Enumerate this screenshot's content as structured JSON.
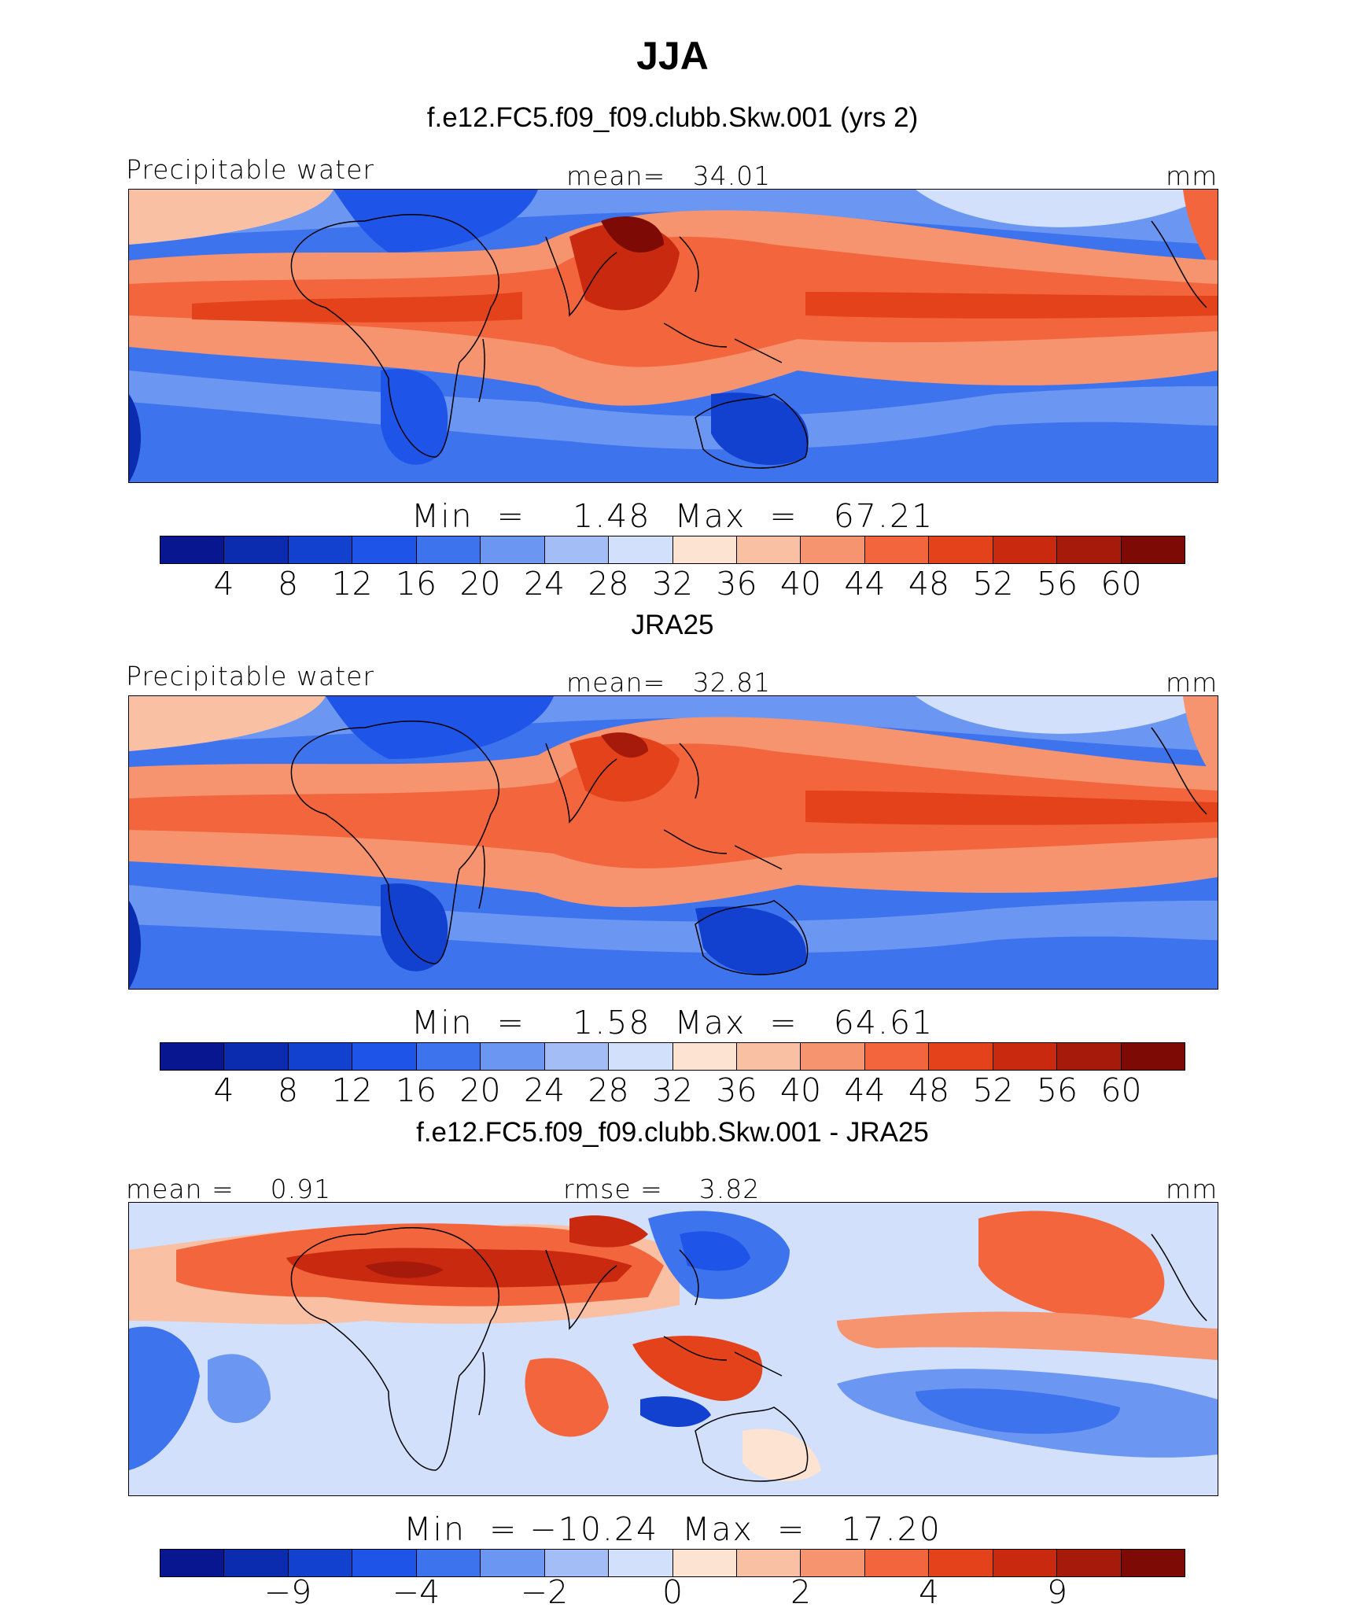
{
  "page": {
    "title": "JJA"
  },
  "panels": [
    {
      "header": "f.e12.FC5.f09_f09.clubb.Skw.001 (yrs 2)",
      "left_label": "Precipitable water",
      "center_label": "mean=   34.01",
      "right_label": "mm",
      "stats": "Min  =    1.48  Max  =   67.21",
      "colorbar_ticks": [
        "4",
        "8",
        "12",
        "16",
        "20",
        "24",
        "28",
        "32",
        "36",
        "40",
        "44",
        "48",
        "52",
        "56",
        "60"
      ]
    },
    {
      "header": "JRA25",
      "left_label": "Precipitable water",
      "center_label": "mean=   32.81",
      "right_label": "mm",
      "stats": "Min  =    1.58  Max  =   64.61",
      "colorbar_ticks": [
        "4",
        "8",
        "12",
        "16",
        "20",
        "24",
        "28",
        "32",
        "36",
        "40",
        "44",
        "48",
        "52",
        "56",
        "60"
      ]
    },
    {
      "header": "f.e12.FC5.f09_f09.clubb.Skw.001 - JRA25",
      "left_label": "mean =    0.91",
      "center_label": "rmse =    3.82",
      "right_label": "mm",
      "stats": "Min  = −10.24  Max  =   17.20",
      "colorbar_ticks": [
        "−9",
        "−4",
        "−2",
        "0",
        "2",
        "4",
        "9"
      ]
    }
  ],
  "colors": {
    "abs_palette": [
      "#08178f",
      "#0b2cae",
      "#1240cf",
      "#1f54e8",
      "#3d74ee",
      "#6b96f2",
      "#a3bdf6",
      "#d2e0fb",
      "#fce3d2",
      "#f9c0a4",
      "#f69470",
      "#f3653d",
      "#e4421b",
      "#c9290f",
      "#a51a0b",
      "#7e0a05"
    ],
    "diff_palette": [
      "#08178f",
      "#0b2cae",
      "#1240cf",
      "#1f54e8",
      "#3d74ee",
      "#6b96f2",
      "#a3bdf6",
      "#d2e0fb",
      "#fce3d2",
      "#f9c0a4",
      "#f69470",
      "#f3653d",
      "#e4421b",
      "#c9290f",
      "#a51a0b",
      "#7e0a05"
    ]
  }
}
